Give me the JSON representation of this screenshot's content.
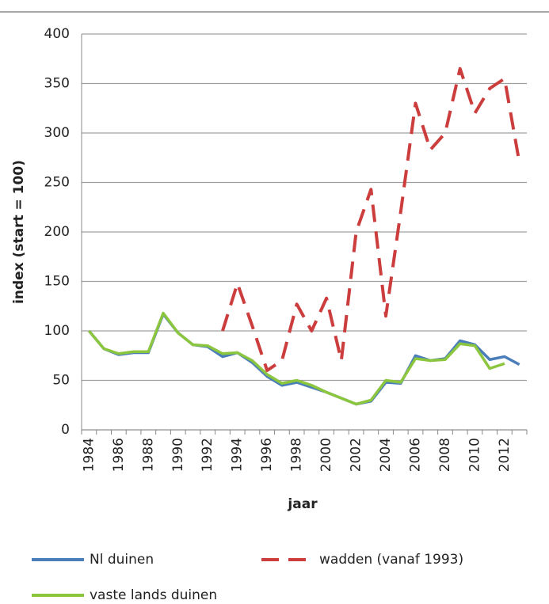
{
  "chart_data": {
    "type": "line",
    "y_label": "index (start = 100)",
    "x_label": "jaar",
    "categories": [
      "1984",
      null,
      "1986",
      null,
      "1988",
      null,
      "1990",
      null,
      "1992",
      null,
      "1994",
      null,
      "1996",
      null,
      "1998",
      null,
      "2000",
      null,
      "2002",
      null,
      "2004",
      null,
      "2006",
      null,
      "2008",
      null,
      "2010",
      null,
      "2012",
      null
    ],
    "series": [
      {
        "name": "Nl duinen",
        "color": "#4a7ebb",
        "dash": false,
        "values": [
          100,
          82,
          76,
          78,
          78,
          117,
          98,
          86,
          84,
          74,
          78,
          68,
          54,
          45,
          48,
          43,
          38,
          32,
          26,
          29,
          48,
          47,
          75,
          70,
          72,
          90,
          86,
          71,
          74,
          66
        ]
      },
      {
        "name": "wadden (vanaf 1993)",
        "color": "#cc3d3d",
        "dash": true,
        "values": [
          null,
          null,
          null,
          null,
          null,
          null,
          null,
          null,
          null,
          100,
          148,
          105,
          60,
          70,
          127,
          100,
          133,
          70,
          200,
          243,
          115,
          220,
          330,
          283,
          300,
          365,
          320,
          345,
          355,
          270
        ]
      },
      {
        "name": "vaste lands duinen",
        "color": "#8cc63f",
        "dash": false,
        "values": [
          100,
          82,
          77,
          79,
          79,
          118,
          98,
          86,
          85,
          77,
          78,
          70,
          56,
          47,
          50,
          45,
          38,
          32,
          26,
          30,
          50,
          48,
          72,
          70,
          71,
          87,
          85,
          62,
          67,
          null
        ]
      }
    ],
    "ylim": [
      0,
      400
    ],
    "yticks": [
      0,
      50,
      100,
      150,
      200,
      250,
      300,
      350,
      400
    ],
    "grid": true
  }
}
